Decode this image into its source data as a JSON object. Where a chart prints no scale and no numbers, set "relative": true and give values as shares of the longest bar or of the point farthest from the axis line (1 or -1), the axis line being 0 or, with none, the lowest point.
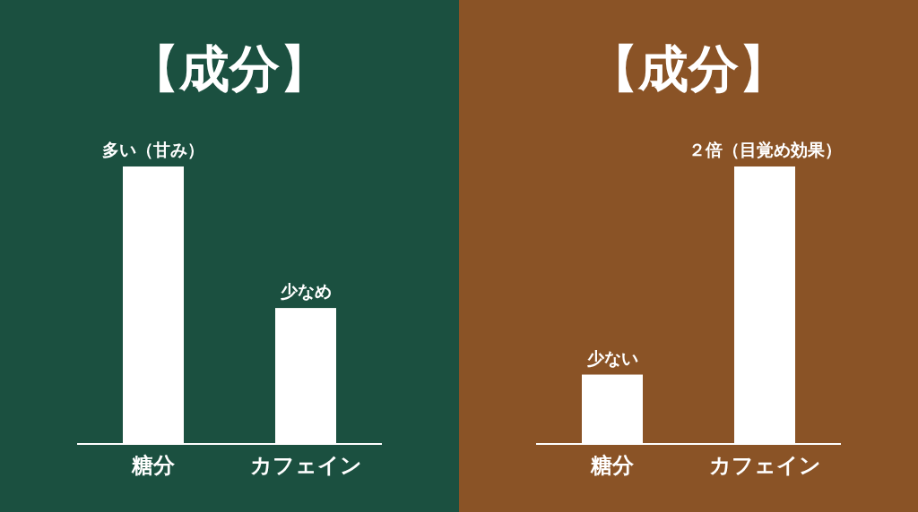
{
  "chart_data": [
    {
      "type": "bar",
      "title": "【成分】",
      "categories": [
        "糖分",
        "カフェイン"
      ],
      "values": [
        1,
        0.49
      ],
      "color": "#ffffff",
      "relative": true,
      "annotations": [
        {
          "text": "多い（甘み）",
          "x": "糖分",
          "y": 1
        },
        {
          "text": "少なめ",
          "x": "カフェイン",
          "y": 0.49
        }
      ]
    },
    {
      "type": "bar",
      "title": "【成分】",
      "categories": [
        "糖分",
        "カフェイン"
      ],
      "values": [
        0.5,
        2
      ],
      "color": "#ffffff",
      "value_labels": [
        "少ない",
        "２倍（目覚め効果）"
      ]
    }
  ]
}
